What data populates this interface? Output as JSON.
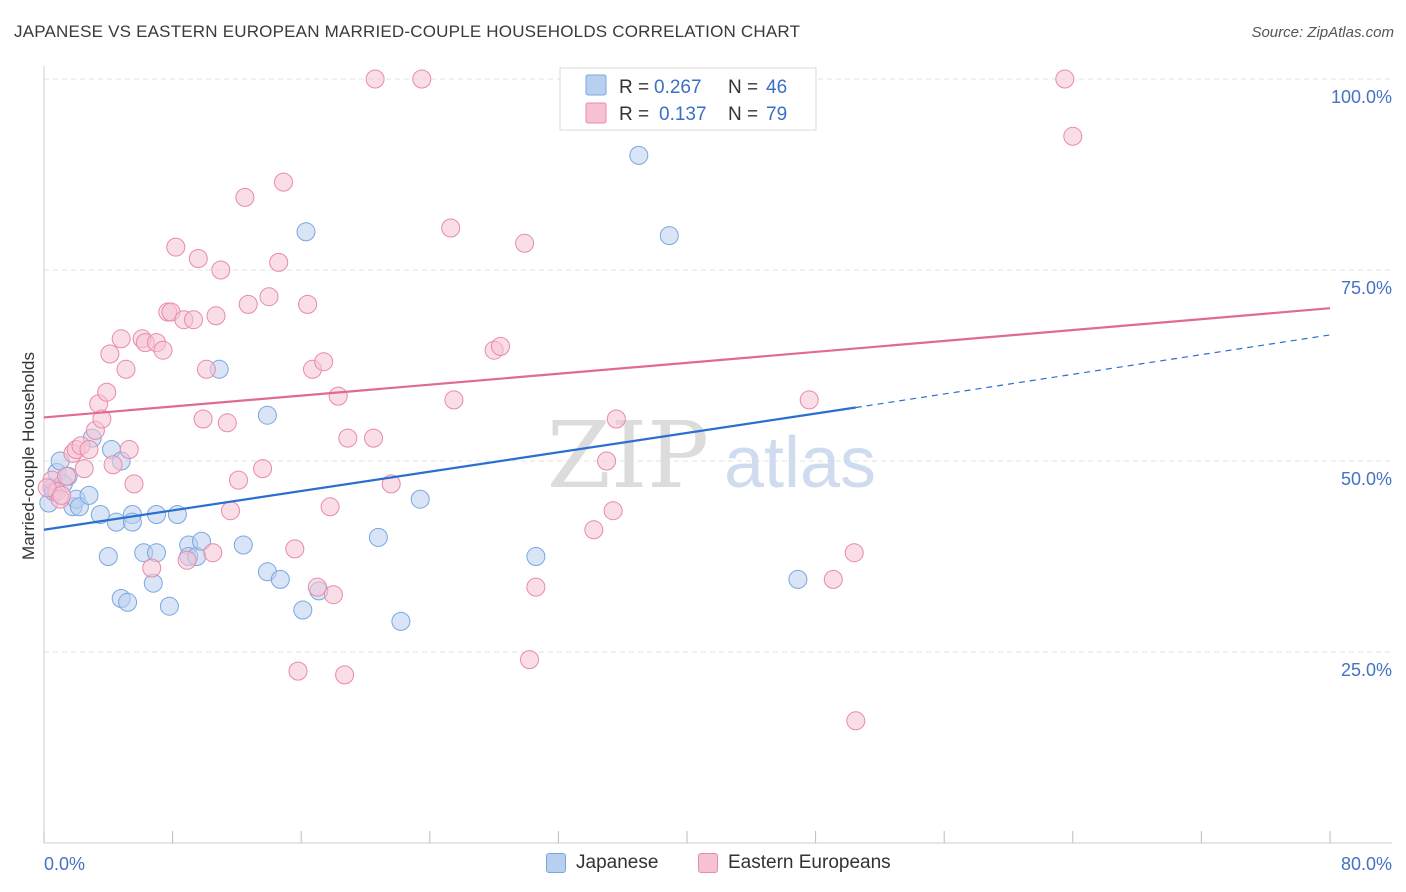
{
  "chart_data": {
    "type": "scatter",
    "title": "JAPANESE VS EASTERN EUROPEAN MARRIED-COUPLE HOUSEHOLDS CORRELATION CHART",
    "source": "Source: ZipAtlas.com",
    "watermark": {
      "zip": "ZIP",
      "atlas": "atlas"
    },
    "ylabel": "Married-couple Households",
    "xlim": [
      0,
      80
    ],
    "ylim": [
      0,
      105
    ],
    "x_tick_labels": {
      "min": "0.0%",
      "max": "80.0%"
    },
    "y_ticks": [
      {
        "value": 25,
        "label": "25.0%"
      },
      {
        "value": 50,
        "label": "50.0%"
      },
      {
        "value": 75,
        "label": "75.0%"
      },
      {
        "value": 100,
        "label": "100.0%"
      }
    ],
    "series": [
      {
        "name": "Japanese",
        "color": "#7aa7e0",
        "fill": "#b9cff0",
        "line_color": "#2a6fcf",
        "r_label": "R = ",
        "r": "0.267",
        "n_label": "N = ",
        "n": "46",
        "trend": {
          "x0": 0,
          "y0": 41.0,
          "x1": 50.5,
          "y1": 57.0,
          "dash_x1": 80,
          "dash_y1": 66.5
        },
        "points": [
          [
            0.5,
            46.5
          ],
          [
            0.8,
            48.5
          ],
          [
            1.0,
            50.0
          ],
          [
            1.2,
            47.0
          ],
          [
            1.5,
            48.0
          ],
          [
            1.8,
            44.0
          ],
          [
            2.0,
            45.0
          ],
          [
            2.2,
            44.0
          ],
          [
            2.8,
            45.5
          ],
          [
            3.0,
            53.0
          ],
          [
            3.5,
            43.0
          ],
          [
            4.2,
            51.5
          ],
          [
            4.5,
            42.0
          ],
          [
            4.8,
            50.0
          ],
          [
            5.5,
            43.0
          ],
          [
            5.5,
            42.0
          ],
          [
            4.0,
            37.5
          ],
          [
            6.2,
            38.0
          ],
          [
            7.0,
            38.0
          ],
          [
            6.8,
            34.0
          ],
          [
            4.8,
            32.0
          ],
          [
            5.2,
            31.5
          ],
          [
            7.8,
            31.0
          ],
          [
            7.0,
            43.0
          ],
          [
            8.3,
            43.0
          ],
          [
            9.0,
            39.0
          ],
          [
            9.0,
            37.5
          ],
          [
            9.5,
            37.5
          ],
          [
            9.8,
            39.5
          ],
          [
            10.9,
            62.0
          ],
          [
            12.4,
            39.0
          ],
          [
            13.9,
            56.0
          ],
          [
            13.9,
            35.5
          ],
          [
            14.7,
            34.5
          ],
          [
            16.3,
            80.0
          ],
          [
            16.1,
            30.5
          ],
          [
            17.1,
            33.0
          ],
          [
            20.8,
            40.0
          ],
          [
            22.2,
            29.0
          ],
          [
            23.4,
            45.0
          ],
          [
            30.6,
            37.5
          ],
          [
            37.0,
            90.0
          ],
          [
            38.9,
            79.5
          ],
          [
            46.9,
            34.5
          ],
          [
            0.3,
            44.5
          ],
          [
            0.6,
            46.0
          ]
        ]
      },
      {
        "name": "Eastern Europeans",
        "color": "#e98aaa",
        "fill": "#f6c2d3",
        "line_color": "#e06a92",
        "r_label": "R = ",
        "r": "0.137",
        "n_label": "N = ",
        "n": "79",
        "trend": {
          "x0": 0,
          "y0": 55.7,
          "x1": 80,
          "y1": 70.0
        },
        "points": [
          [
            0.5,
            47.5
          ],
          [
            0.8,
            46.0
          ],
          [
            1.0,
            45.0
          ],
          [
            1.4,
            48.0
          ],
          [
            1.8,
            51.0
          ],
          [
            2.0,
            51.5
          ],
          [
            2.3,
            52.0
          ],
          [
            2.8,
            51.5
          ],
          [
            3.2,
            54.0
          ],
          [
            3.4,
            57.5
          ],
          [
            3.6,
            55.5
          ],
          [
            4.3,
            49.5
          ],
          [
            4.1,
            64.0
          ],
          [
            4.8,
            66.0
          ],
          [
            5.1,
            62.0
          ],
          [
            5.3,
            51.5
          ],
          [
            5.6,
            47.0
          ],
          [
            6.1,
            66.0
          ],
          [
            6.3,
            65.5
          ],
          [
            6.7,
            36.0
          ],
          [
            7.0,
            65.5
          ],
          [
            7.4,
            64.5
          ],
          [
            7.7,
            69.5
          ],
          [
            7.9,
            69.5
          ],
          [
            8.2,
            78.0
          ],
          [
            8.7,
            68.5
          ],
          [
            8.9,
            37.0
          ],
          [
            9.3,
            68.5
          ],
          [
            9.6,
            76.5
          ],
          [
            9.9,
            55.5
          ],
          [
            10.1,
            62.0
          ],
          [
            10.5,
            38.0
          ],
          [
            10.7,
            69.0
          ],
          [
            11.0,
            75.0
          ],
          [
            11.4,
            55.0
          ],
          [
            11.6,
            43.5
          ],
          [
            12.1,
            47.5
          ],
          [
            12.7,
            70.5
          ],
          [
            12.5,
            84.5
          ],
          [
            13.6,
            49.0
          ],
          [
            14.0,
            71.5
          ],
          [
            14.6,
            76.0
          ],
          [
            14.9,
            86.5
          ],
          [
            15.6,
            38.5
          ],
          [
            15.8,
            22.5
          ],
          [
            16.4,
            70.5
          ],
          [
            16.7,
            62.0
          ],
          [
            17.0,
            33.5
          ],
          [
            17.4,
            63.0
          ],
          [
            17.8,
            44.0
          ],
          [
            18.0,
            32.5
          ],
          [
            18.3,
            58.5
          ],
          [
            18.7,
            22.0
          ],
          [
            18.9,
            53.0
          ],
          [
            20.5,
            53.0
          ],
          [
            20.6,
            100.0
          ],
          [
            21.6,
            47.0
          ],
          [
            23.5,
            100.0
          ],
          [
            25.3,
            80.5
          ],
          [
            25.5,
            58.0
          ],
          [
            28.0,
            64.5
          ],
          [
            28.4,
            65.0
          ],
          [
            29.9,
            78.5
          ],
          [
            30.2,
            24.0
          ],
          [
            30.6,
            33.5
          ],
          [
            34.2,
            41.0
          ],
          [
            35.0,
            50.0
          ],
          [
            35.4,
            43.5
          ],
          [
            35.6,
            55.5
          ],
          [
            47.6,
            58.0
          ],
          [
            49.1,
            34.5
          ],
          [
            50.4,
            38.0
          ],
          [
            50.5,
            16.0
          ],
          [
            63.5,
            100.0
          ],
          [
            64.0,
            92.5
          ],
          [
            0.2,
            46.5
          ],
          [
            1.1,
            45.5
          ],
          [
            2.5,
            49.0
          ],
          [
            3.9,
            59.0
          ]
        ]
      }
    ]
  }
}
